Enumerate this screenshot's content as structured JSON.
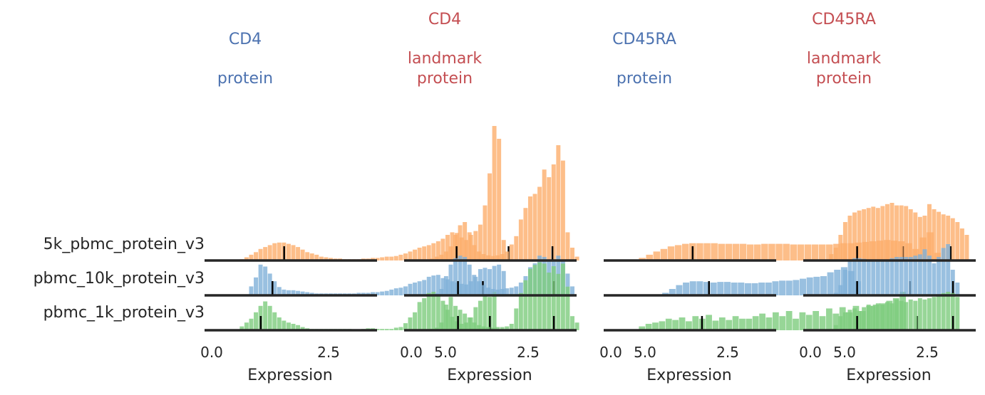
{
  "colors": {
    "title_blue": "#4c72b0",
    "title_red": "#c44e52",
    "axis_text": "#262626",
    "baseline": "#262626",
    "median_tick": "#000000"
  },
  "x_axis": {
    "label": "Expression",
    "ticks": [
      0.0,
      2.5,
      5.0
    ],
    "tick_labels": [
      "0.0",
      "2.5",
      "5.0"
    ],
    "range": [
      0,
      7.2
    ]
  },
  "rows": [
    {
      "label": "5k_pbmc_protein_v3",
      "color": "#fdae6b"
    },
    {
      "label": "pbmc_10k_protein_v3",
      "color": "#7fb0d8"
    },
    {
      "label": "pbmc_1k_protein_v3",
      "color": "#7dcc7d"
    }
  ],
  "chart_data": {
    "type": "histogram-ridgeline",
    "xlabel": "Expression",
    "panels": [
      {
        "title_lines": [
          "CD4",
          "",
          "protein"
        ],
        "title_color": "#4c72b0",
        "series": [
          {
            "name": "5k_pbmc_protein_v3",
            "color": "#fdae6b",
            "bin_start": 0.6,
            "bin_width": 0.1,
            "counts": [
              2,
              5,
              9,
              13,
              18,
              21,
              24,
              27,
              28,
              28,
              26,
              24,
              21,
              17,
              13,
              11,
              9,
              6,
              5,
              4,
              3,
              3,
              2,
              2,
              2,
              2,
              3,
              3,
              4,
              4,
              5,
              6,
              6,
              7,
              9,
              11,
              14,
              17,
              20,
              22,
              24,
              27,
              30,
              34,
              40,
              44,
              43,
              36,
              32,
              40,
              46,
              56,
              86,
              136,
              210,
              190,
              32
            ],
            "marks": [
              1.55,
              6.35
            ]
          },
          {
            "name": "pbmc_10k_protein_v3",
            "color": "#7fb0d8",
            "bin_start": 0.8,
            "bin_width": 0.1,
            "counts": [
              14,
              28,
              48,
              45,
              34,
              22,
              13,
              9,
              8,
              8,
              7,
              6,
              5,
              4,
              3,
              3,
              3,
              3,
              3,
              3,
              3,
              3,
              3,
              4,
              4,
              4,
              5,
              5,
              6,
              7,
              9,
              11,
              12,
              14,
              18,
              20,
              22,
              24,
              29,
              31,
              32,
              27,
              25,
              22,
              20,
              18,
              17,
              22,
              29,
              41,
              43,
              41,
              46,
              48,
              38
            ],
            "marks": [
              1.3,
              5.8
            ]
          },
          {
            "name": "pbmc_1k_protein_v3",
            "color": "#7dcc7d",
            "bin_start": 0.6,
            "bin_width": 0.1,
            "counts": [
              6,
              12,
              18,
              28,
              38,
              45,
              38,
              28,
              20,
              15,
              12,
              10,
              8,
              5,
              3,
              2,
              2,
              2,
              2,
              2,
              2,
              2,
              2,
              2,
              1,
              1,
              2,
              3,
              3,
              2,
              2,
              2,
              2,
              4,
              5,
              11,
              20,
              28,
              44,
              50,
              58,
              60,
              53,
              46,
              32,
              21,
              14,
              10,
              12,
              20,
              36,
              46,
              54,
              52,
              60
            ],
            "marks": [
              1.05,
              5.95
            ]
          }
        ]
      },
      {
        "title_lines": [
          "CD4",
          "landmark",
          "protein"
        ],
        "title_color": "#c44e52",
        "series": [
          {
            "name": "5k_pbmc_protein_v3",
            "color": "#fdae6b",
            "bin_start": 0.3,
            "bin_width": 0.1,
            "counts": [
              1,
              3,
              6,
              9,
              14,
              22,
              40,
              55,
              60,
              44,
              24,
              14,
              10,
              8,
              7,
              8,
              10,
              14,
              25,
              38,
              64,
              82,
              100,
              104,
              115,
              142,
              130,
              150,
              180,
              156,
              44,
              20,
              6
            ],
            "marks": [
              0.97,
              3.02
            ]
          },
          {
            "name": "pbmc_10k_protein_v3",
            "color": "#7fb0d8",
            "bin_start": 0.5,
            "bin_width": 0.1,
            "counts": [
              3,
              10,
              30,
              48,
              58,
              62,
              60,
              48,
              32,
              22,
              16,
              12,
              10,
              9,
              10,
              11,
              12,
              14,
              20,
              30,
              44,
              50,
              62,
              60,
              56,
              56,
              62,
              55,
              34,
              14
            ],
            "marks": [
              1.0,
              3.05
            ]
          },
          {
            "name": "pbmc_1k_protein_v3",
            "color": "#7dcc7d",
            "bin_start": 0.4,
            "bin_width": 0.1,
            "counts": [
              2,
              4,
              12,
              40,
              52,
              38,
              32,
              26,
              20,
              12,
              8,
              6,
              5,
              4,
              5,
              5,
              6,
              10,
              34,
              58,
              78,
              96,
              102,
              106,
              104,
              90,
              100,
              88,
              104,
              68,
              22,
              12
            ],
            "marks": [
              1.0,
              3.05
            ]
          }
        ]
      },
      {
        "title_lines": [
          "CD45RA",
          "",
          "protein"
        ],
        "title_color": "#4c72b0",
        "series": [
          {
            "name": "5k_pbmc_protein_v3",
            "color": "#fdae6b",
            "bin_start": 0.6,
            "bin_width": 0.154,
            "counts": [
              4,
              9,
              14,
              18,
              22,
              24,
              26,
              27,
              27,
              27,
              27,
              26,
              26,
              26,
              26,
              25,
              25,
              26,
              26,
              26,
              26,
              25,
              25,
              25,
              25,
              25,
              25,
              26,
              27,
              27,
              28,
              29,
              30,
              31,
              32,
              31,
              30,
              27,
              18,
              36,
              44,
              12
            ],
            "marks": [
              1.75,
              6.25
            ]
          },
          {
            "name": "pbmc_10k_protein_v3",
            "color": "#7fb0d8",
            "bin_start": 1.1,
            "bin_width": 0.147,
            "counts": [
              4,
              10,
              16,
              20,
              22,
              22,
              21,
              20,
              21,
              21,
              20,
              20,
              19,
              19,
              20,
              20,
              22,
              23,
              23,
              24,
              26,
              28,
              29,
              30,
              36,
              40,
              44,
              38,
              22
            ],
            "marks": [
              2.1,
              6.4
            ]
          },
          {
            "name": "pbmc_1k_protein_v3",
            "color": "#7dcc7d",
            "bin_start": 0.6,
            "bin_width": 0.143,
            "counts": [
              6,
              10,
              12,
              14,
              18,
              16,
              20,
              14,
              22,
              18,
              24,
              15,
              20,
              16,
              22,
              18,
              18,
              22,
              26,
              20,
              28,
              22,
              30,
              18,
              28,
              24,
              30,
              22,
              34,
              26,
              36,
              28,
              38,
              30,
              38,
              40,
              42,
              46,
              50,
              60
            ],
            "marks": [
              1.95,
              6.55
            ]
          }
        ]
      },
      {
        "title_lines": [
          "CD45RA",
          "landmark",
          "protein"
        ],
        "title_color": "#c44e52",
        "series": [
          {
            "name": "5k_pbmc_protein_v3",
            "color": "#fdae6b",
            "bin_start": 0.4,
            "bin_width": 0.1,
            "counts": [
              10,
              20,
              40,
              60,
              70,
              75,
              78,
              80,
              82,
              84,
              82,
              85,
              88,
              90,
              86,
              86,
              85,
              80,
              75,
              68,
              70,
              88,
              80,
              76,
              72,
              70,
              66,
              60,
              50,
              40
            ],
            "marks": [
              1.0,
              3.0
            ]
          },
          {
            "name": "pbmc_10k_protein_v3",
            "color": "#7fb0d8",
            "bin_start": 0.5,
            "bin_width": 0.1,
            "counts": [
              4,
              16,
              40,
              54,
              58,
              58,
              57,
              56,
              55,
              54,
              55,
              56,
              58,
              60,
              60,
              60,
              60,
              62,
              64,
              72,
              62,
              50,
              60,
              74,
              80,
              40,
              20
            ],
            "marks": [
              1.0,
              3.05
            ]
          },
          {
            "name": "pbmc_1k_protein_v3",
            "color": "#7dcc7d",
            "bin_start": 0.5,
            "bin_width": 0.1,
            "counts": [
              8,
              22,
              28,
              32,
              34,
              30,
              36,
              40,
              38,
              42,
              40,
              44,
              42,
              48,
              46,
              44,
              48,
              46,
              50,
              48,
              50,
              52,
              54,
              58,
              60,
              58,
              52
            ],
            "marks": [
              1.0,
              3.05
            ]
          }
        ]
      }
    ]
  }
}
